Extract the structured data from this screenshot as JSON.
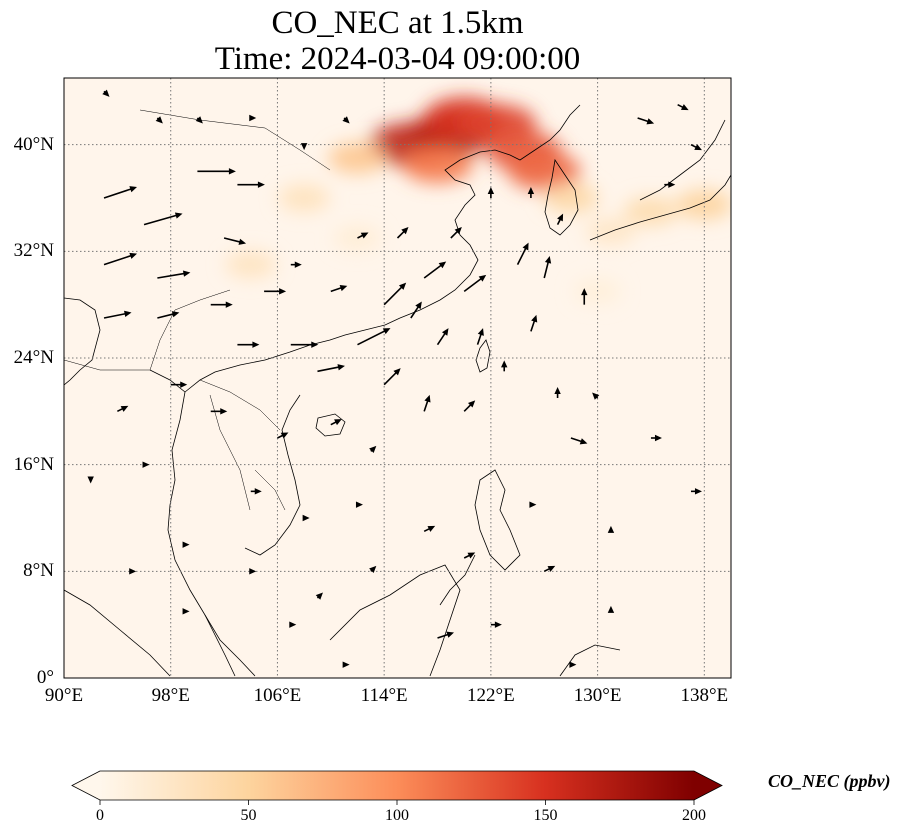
{
  "title": {
    "line1": "CO_NEC at 1.5km",
    "line2": "Time: 2024-03-04 09:00:00"
  },
  "map": {
    "lon_range": [
      90,
      140
    ],
    "lat_range": [
      0,
      45
    ],
    "lon_ticks": [
      90,
      98,
      106,
      114,
      122,
      130,
      138
    ],
    "lat_ticks": [
      0,
      8,
      16,
      24,
      32,
      40
    ],
    "lon_tick_labels": [
      "90°E",
      "98°E",
      "106°E",
      "114°E",
      "122°E",
      "130°E",
      "138°E"
    ],
    "lat_tick_labels": [
      "0°",
      "8°N",
      "16°N",
      "24°N",
      "32°N",
      "40°N"
    ],
    "gridlines": true,
    "background_color": "#fff5eb"
  },
  "colorbar": {
    "label": "CO_NEC (ppbv)",
    "ticks": [
      0,
      50,
      100,
      150,
      200
    ],
    "tick_labels": [
      "0",
      "50",
      "100",
      "150",
      "200"
    ],
    "range": [
      0,
      200
    ],
    "colormap": "OrRd",
    "colors": [
      "#fff7ec",
      "#fdd49e",
      "#fc8d59",
      "#d7301f",
      "#7f0000"
    ],
    "extend": "both"
  },
  "plumes": [
    {
      "lon": 119.0,
      "lat": 40.8,
      "value": 175
    },
    {
      "lon": 116.0,
      "lat": 40.0,
      "value": 165
    },
    {
      "lon": 120.0,
      "lat": 42.0,
      "value": 150
    },
    {
      "lon": 122.5,
      "lat": 41.5,
      "value": 140
    },
    {
      "lon": 124.5,
      "lat": 39.5,
      "value": 130
    },
    {
      "lon": 126.0,
      "lat": 38.0,
      "value": 120
    },
    {
      "lon": 118.0,
      "lat": 38.5,
      "value": 110
    },
    {
      "lon": 112.0,
      "lat": 39.0,
      "value": 60
    },
    {
      "lon": 108.0,
      "lat": 36.0,
      "value": 30
    },
    {
      "lon": 104.0,
      "lat": 31.0,
      "value": 28
    },
    {
      "lon": 112.0,
      "lat": 33.0,
      "value": 15
    },
    {
      "lon": 128.0,
      "lat": 36.0,
      "value": 45
    },
    {
      "lon": 134.0,
      "lat": 35.0,
      "value": 40
    },
    {
      "lon": 138.0,
      "lat": 35.5,
      "value": 50
    },
    {
      "lon": 131.0,
      "lat": 33.5,
      "value": 25
    },
    {
      "lon": 130.0,
      "lat": 29.0,
      "value": 12
    }
  ],
  "wind_vectors": [
    {
      "lon": 93,
      "lat": 36,
      "u": 6,
      "v": 2
    },
    {
      "lon": 96,
      "lat": 34,
      "u": 7,
      "v": 2
    },
    {
      "lon": 100,
      "lat": 38,
      "u": 7,
      "v": 0
    },
    {
      "lon": 103,
      "lat": 37,
      "u": 5,
      "v": 0
    },
    {
      "lon": 93,
      "lat": 31,
      "u": 6,
      "v": 2
    },
    {
      "lon": 97,
      "lat": 30,
      "u": 6,
      "v": 1
    },
    {
      "lon": 102,
      "lat": 33,
      "u": 4,
      "v": -1
    },
    {
      "lon": 93,
      "lat": 27,
      "u": 5,
      "v": 1
    },
    {
      "lon": 97,
      "lat": 27,
      "u": 4,
      "v": 1
    },
    {
      "lon": 101,
      "lat": 28,
      "u": 4,
      "v": 0
    },
    {
      "lon": 105,
      "lat": 29,
      "u": 4,
      "v": 0
    },
    {
      "lon": 103,
      "lat": 25,
      "u": 4,
      "v": 0
    },
    {
      "lon": 107,
      "lat": 25,
      "u": 5,
      "v": 0
    },
    {
      "lon": 109,
      "lat": 23,
      "u": 5,
      "v": 1
    },
    {
      "lon": 112,
      "lat": 25,
      "u": 6,
      "v": 3
    },
    {
      "lon": 114,
      "lat": 28,
      "u": 4,
      "v": 4
    },
    {
      "lon": 117,
      "lat": 30,
      "u": 4,
      "v": 3
    },
    {
      "lon": 120,
      "lat": 29,
      "u": 4,
      "v": 3
    },
    {
      "lon": 116,
      "lat": 27,
      "u": 2,
      "v": 3
    },
    {
      "lon": 118,
      "lat": 25,
      "u": 2,
      "v": 3
    },
    {
      "lon": 114,
      "lat": 22,
      "u": 3,
      "v": 3
    },
    {
      "lon": 117,
      "lat": 20,
      "u": 1,
      "v": 3
    },
    {
      "lon": 124,
      "lat": 31,
      "u": 2,
      "v": 4
    },
    {
      "lon": 126,
      "lat": 30,
      "u": 1,
      "v": 4
    },
    {
      "lon": 129,
      "lat": 28,
      "u": 0,
      "v": 3
    },
    {
      "lon": 125,
      "lat": 26,
      "u": 1,
      "v": 3
    },
    {
      "lon": 121,
      "lat": 25,
      "u": 1,
      "v": 3
    },
    {
      "lon": 123,
      "lat": 23,
      "u": 0,
      "v": 2
    },
    {
      "lon": 120,
      "lat": 20,
      "u": 2,
      "v": 2
    },
    {
      "lon": 127,
      "lat": 21,
      "u": 0,
      "v": 2
    },
    {
      "lon": 130,
      "lat": 21,
      "u": -1,
      "v": 1
    },
    {
      "lon": 128,
      "lat": 18,
      "u": 3,
      "v": -1
    },
    {
      "lon": 134,
      "lat": 18,
      "u": 2,
      "v": 0
    },
    {
      "lon": 137,
      "lat": 14,
      "u": 2,
      "v": 0
    },
    {
      "lon": 98,
      "lat": 22,
      "u": 3,
      "v": 0
    },
    {
      "lon": 101,
      "lat": 20,
      "u": 3,
      "v": 0
    },
    {
      "lon": 94,
      "lat": 20,
      "u": 2,
      "v": 1
    },
    {
      "lon": 106,
      "lat": 18,
      "u": 2,
      "v": 1
    },
    {
      "lon": 110,
      "lat": 19,
      "u": 2,
      "v": 1
    },
    {
      "lon": 113,
      "lat": 17,
      "u": 1,
      "v": 1
    },
    {
      "lon": 104,
      "lat": 14,
      "u": 2,
      "v": 0
    },
    {
      "lon": 108,
      "lat": 12,
      "u": 1,
      "v": 0
    },
    {
      "lon": 112,
      "lat": 13,
      "u": 1,
      "v": 0
    },
    {
      "lon": 117,
      "lat": 11,
      "u": 2,
      "v": 1
    },
    {
      "lon": 120,
      "lat": 9,
      "u": 2,
      "v": 1
    },
    {
      "lon": 125,
      "lat": 13,
      "u": 1,
      "v": 0
    },
    {
      "lon": 113,
      "lat": 8,
      "u": 1,
      "v": 1
    },
    {
      "lon": 109,
      "lat": 6,
      "u": 1,
      "v": 1
    },
    {
      "lon": 104,
      "lat": 8,
      "u": 1,
      "v": 0
    },
    {
      "lon": 99,
      "lat": 10,
      "u": 1,
      "v": 0
    },
    {
      "lon": 95,
      "lat": 8,
      "u": 1,
      "v": 0
    },
    {
      "lon": 99,
      "lat": 5,
      "u": 1,
      "v": 0
    },
    {
      "lon": 118,
      "lat": 3,
      "u": 3,
      "v": 1
    },
    {
      "lon": 122,
      "lat": 4,
      "u": 2,
      "v": 0
    },
    {
      "lon": 126,
      "lat": 8,
      "u": 2,
      "v": 1
    },
    {
      "lon": 133,
      "lat": 42,
      "u": 3,
      "v": -1
    },
    {
      "lon": 136,
      "lat": 43,
      "u": 2,
      "v": -1
    },
    {
      "lon": 137,
      "lat": 40,
      "u": 2,
      "v": -1
    },
    {
      "lon": 135,
      "lat": 37,
      "u": 2,
      "v": 0
    },
    {
      "lon": 127,
      "lat": 34,
      "u": 1,
      "v": 2
    },
    {
      "lon": 110,
      "lat": 29,
      "u": 3,
      "v": 1
    },
    {
      "lon": 107,
      "lat": 31,
      "u": 2,
      "v": 0
    },
    {
      "lon": 112,
      "lat": 33,
      "u": 2,
      "v": 1
    },
    {
      "lon": 115,
      "lat": 33,
      "u": 2,
      "v": 2
    },
    {
      "lon": 119,
      "lat": 33,
      "u": 2,
      "v": 2
    },
    {
      "lon": 122,
      "lat": 36,
      "u": 0,
      "v": 2
    },
    {
      "lon": 125,
      "lat": 36,
      "u": 0,
      "v": 2
    },
    {
      "lon": 97,
      "lat": 42,
      "u": 1,
      "v": -1
    },
    {
      "lon": 100,
      "lat": 42,
      "u": 1,
      "v": -1
    },
    {
      "lon": 104,
      "lat": 42,
      "u": 1,
      "v": 0
    },
    {
      "lon": 108,
      "lat": 40,
      "u": 0,
      "v": -1
    },
    {
      "lon": 111,
      "lat": 42,
      "u": 1,
      "v": -1
    },
    {
      "lon": 93,
      "lat": 44,
      "u": 1,
      "v": -1
    },
    {
      "lon": 92,
      "lat": 15,
      "u": 0,
      "v": -1
    },
    {
      "lon": 96,
      "lat": 16,
      "u": 1,
      "v": 0
    },
    {
      "lon": 131,
      "lat": 11,
      "u": 0,
      "v": 1
    },
    {
      "lon": 131,
      "lat": 5,
      "u": 0,
      "v": 1
    },
    {
      "lon": 107,
      "lat": 4,
      "u": 1,
      "v": 0
    },
    {
      "lon": 111,
      "lat": 1,
      "u": 1,
      "v": 0
    },
    {
      "lon": 128,
      "lat": 1,
      "u": 1,
      "v": 0
    }
  ]
}
